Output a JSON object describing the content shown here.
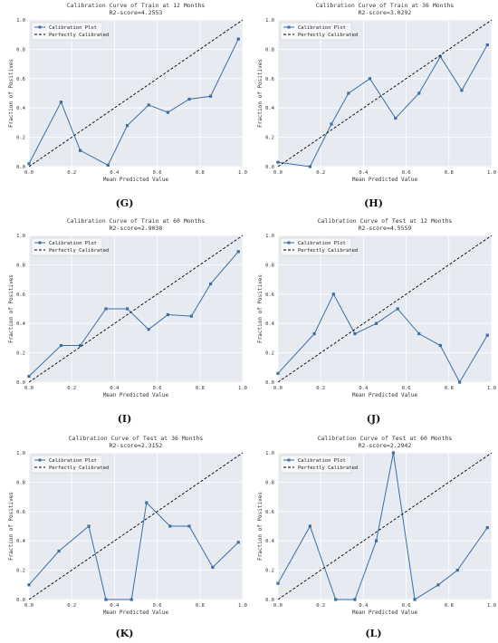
{
  "colors": {
    "plot_bg": "#e8eaf1",
    "grid": "#ffffff",
    "series": "#3a6ea5",
    "diagonal": "#000000"
  },
  "chart_data": [
    {
      "panel_label": "(G)",
      "type": "line",
      "title": "Calibration Curve of Train at 12 Months",
      "subtitle": "R2-score=4.2553",
      "xlabel": "Mean Predicted Value",
      "ylabel": "Fraction of Positives",
      "xlim": [
        0,
        1
      ],
      "ylim": [
        0,
        1
      ],
      "xticks": [
        "0.0",
        "0.2",
        "0.4",
        "0.6",
        "0.8",
        "1.0"
      ],
      "yticks": [
        "0.0",
        "0.2",
        "0.4",
        "0.6",
        "0.8",
        "1.0"
      ],
      "grid": true,
      "legend": "top-left",
      "series": [
        {
          "name": "Calibration Plot",
          "style": "line-square",
          "x": [
            0.0,
            0.15,
            0.24,
            0.37,
            0.46,
            0.56,
            0.65,
            0.75,
            0.85,
            0.98
          ],
          "y": [
            0.02,
            0.44,
            0.11,
            0.01,
            0.28,
            0.42,
            0.37,
            0.46,
            0.48,
            0.87
          ]
        },
        {
          "name": "Perfectly Calibrated",
          "style": "dashed",
          "x": [
            0,
            1
          ],
          "y": [
            0,
            1
          ]
        }
      ]
    },
    {
      "panel_label": "(H)",
      "type": "line",
      "title": "Calibration Curve of Train at 36 Months",
      "subtitle": "R2-score=3.0292",
      "xlabel": "Mean Predicted Value",
      "ylabel": "Fraction of Positives",
      "xlim": [
        0,
        1
      ],
      "ylim": [
        0,
        1
      ],
      "xticks": [
        "0.0",
        "0.2",
        "0.4",
        "0.6",
        "0.8",
        "1.0"
      ],
      "yticks": [
        "0.0",
        "0.2",
        "0.4",
        "0.6",
        "0.8",
        "1.0"
      ],
      "grid": true,
      "legend": "top-left",
      "series": [
        {
          "name": "Calibration Plot",
          "style": "line-square",
          "x": [
            0.0,
            0.15,
            0.25,
            0.33,
            0.43,
            0.55,
            0.66,
            0.76,
            0.86,
            0.98
          ],
          "y": [
            0.03,
            0.0,
            0.29,
            0.5,
            0.6,
            0.33,
            0.5,
            0.75,
            0.52,
            0.83
          ]
        },
        {
          "name": "Perfectly Calibrated",
          "style": "dashed",
          "x": [
            0,
            1
          ],
          "y": [
            0,
            1
          ]
        }
      ]
    },
    {
      "panel_label": "(I)",
      "type": "line",
      "title": "Calibration Curve of Train at 60 Months",
      "subtitle": "R2-score=2.9038",
      "xlabel": "Mean Predicted Value",
      "ylabel": "Fraction of Positives",
      "xlim": [
        0,
        1
      ],
      "ylim": [
        0,
        1
      ],
      "xticks": [
        "0.0",
        "0.2",
        "0.4",
        "0.6",
        "0.8",
        "1.0"
      ],
      "yticks": [
        "0.0",
        "0.2",
        "0.4",
        "0.6",
        "0.8",
        "1.0"
      ],
      "grid": true,
      "legend": "top-left",
      "series": [
        {
          "name": "Calibration Plot",
          "style": "line-square",
          "x": [
            0.0,
            0.15,
            0.24,
            0.36,
            0.46,
            0.56,
            0.65,
            0.76,
            0.85,
            0.98
          ],
          "y": [
            0.04,
            0.25,
            0.25,
            0.5,
            0.5,
            0.36,
            0.46,
            0.45,
            0.67,
            0.89
          ]
        },
        {
          "name": "Perfectly Calibrated",
          "style": "dashed",
          "x": [
            0,
            1
          ],
          "y": [
            0,
            1
          ]
        }
      ]
    },
    {
      "panel_label": "(J)",
      "type": "line",
      "title": "Calibration Curve of Test at 12 Months",
      "subtitle": "R2-score=4.5559",
      "xlabel": "Mean Predicted Value",
      "ylabel": "Fraction of Positives",
      "xlim": [
        0,
        1
      ],
      "ylim": [
        0,
        1
      ],
      "xticks": [
        "0.0",
        "0.2",
        "0.4",
        "0.6",
        "0.8",
        "1.0"
      ],
      "yticks": [
        "0.0",
        "0.2",
        "0.4",
        "0.6",
        "0.8",
        "1.0"
      ],
      "grid": true,
      "legend": "top-left",
      "series": [
        {
          "name": "Calibration Plot",
          "style": "line-square",
          "x": [
            0.0,
            0.17,
            0.26,
            0.36,
            0.46,
            0.56,
            0.66,
            0.76,
            0.85,
            0.98
          ],
          "y": [
            0.06,
            0.33,
            0.6,
            0.33,
            0.4,
            0.5,
            0.33,
            0.25,
            0.0,
            0.32
          ]
        },
        {
          "name": "Perfectly Calibrated",
          "style": "dashed",
          "x": [
            0,
            1
          ],
          "y": [
            0,
            1
          ]
        }
      ]
    },
    {
      "panel_label": "(K)",
      "type": "line",
      "title": "Calibration Curve of Test at 36 Months",
      "subtitle": "R2-score=2.3152",
      "xlabel": "Mean Predicted Value",
      "ylabel": "Fraction of Positives",
      "xlim": [
        0,
        1
      ],
      "ylim": [
        0,
        1
      ],
      "xticks": [
        "0.0",
        "0.2",
        "0.4",
        "0.6",
        "0.8",
        "1.0"
      ],
      "yticks": [
        "0.0",
        "0.2",
        "0.4",
        "0.6",
        "0.8",
        "1.0"
      ],
      "grid": true,
      "legend": "top-left",
      "series": [
        {
          "name": "Calibration Plot",
          "style": "line-square",
          "x": [
            0.0,
            0.14,
            0.28,
            0.36,
            0.48,
            0.55,
            0.66,
            0.75,
            0.86,
            0.98
          ],
          "y": [
            0.1,
            0.33,
            0.5,
            0.0,
            0.0,
            0.66,
            0.5,
            0.5,
            0.22,
            0.39
          ]
        },
        {
          "name": "Perfectly Calibrated",
          "style": "dashed",
          "x": [
            0,
            1
          ],
          "y": [
            0,
            1
          ]
        }
      ]
    },
    {
      "panel_label": "(L)",
      "type": "line",
      "title": "Calibration Curve of Test at 60 Months",
      "subtitle": "R2-score=2.2942",
      "xlabel": "Mean Predicted Value",
      "ylabel": "Fraction of Positives",
      "xlim": [
        0,
        1
      ],
      "ylim": [
        0,
        1
      ],
      "xticks": [
        "0.0",
        "0.2",
        "0.4",
        "0.6",
        "0.8",
        "1.0"
      ],
      "yticks": [
        "0.0",
        "0.2",
        "0.4",
        "0.6",
        "0.8",
        "1.0"
      ],
      "grid": true,
      "legend": "top-left",
      "series": [
        {
          "name": "Calibration Plot",
          "style": "line-square",
          "x": [
            0.0,
            0.15,
            0.27,
            0.36,
            0.46,
            0.54,
            0.64,
            0.75,
            0.84,
            0.98
          ],
          "y": [
            0.11,
            0.5,
            0.0,
            0.0,
            0.4,
            1.0,
            0.0,
            0.1,
            0.2,
            0.49
          ]
        },
        {
          "name": "Perfectly Calibrated",
          "style": "dashed",
          "x": [
            0,
            1
          ],
          "y": [
            0,
            1
          ]
        }
      ]
    }
  ]
}
